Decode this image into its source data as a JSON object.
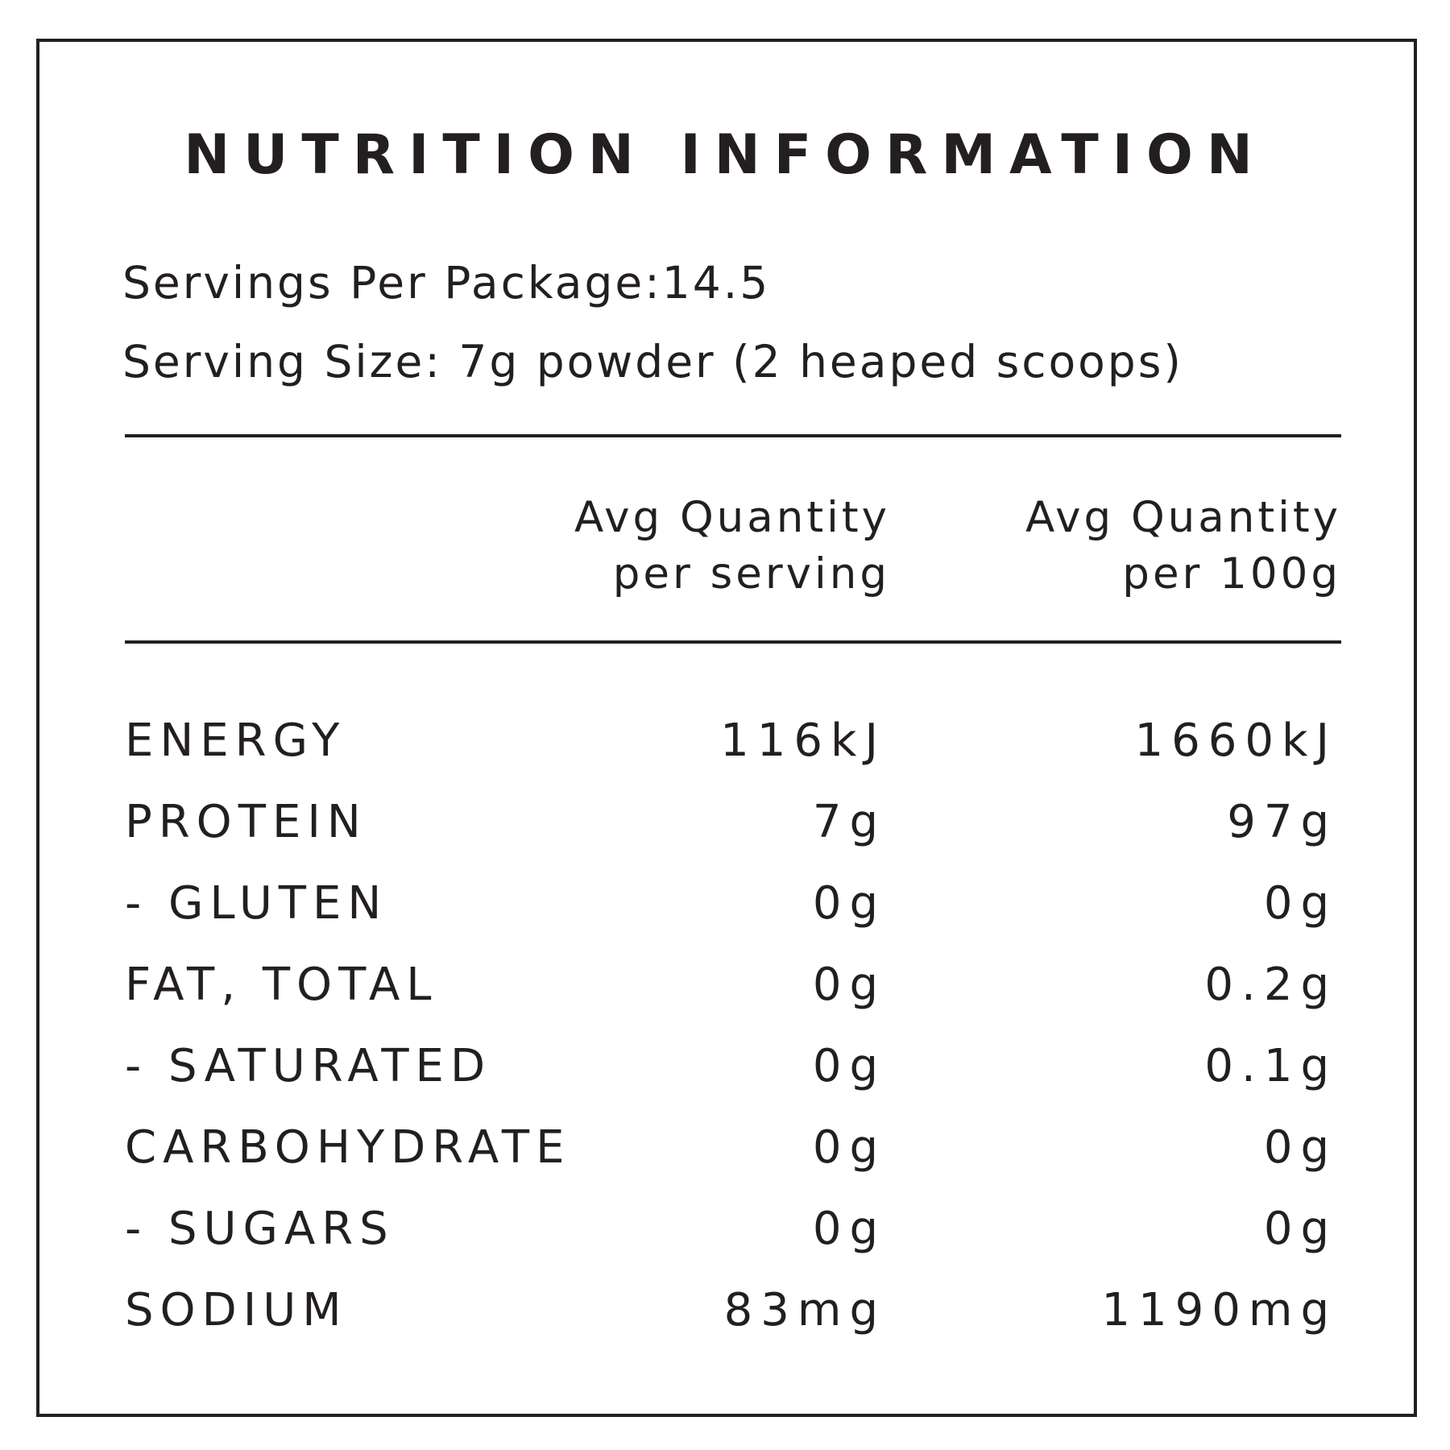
{
  "title": "NUTRITION INFORMATION",
  "servings_per_package": "Servings Per Package:14.5",
  "serving_size": "Serving Size: 7g powder (2 heaped scoops)",
  "columns": [
    {
      "line1": "Avg Quantity",
      "line2": "per serving"
    },
    {
      "line1": "Avg Quantity",
      "line2": "per 100g"
    }
  ],
  "rows": [
    {
      "label": "ENERGY",
      "per_serving": "116kJ",
      "per_100g": "1660kJ"
    },
    {
      "label": "PROTEIN",
      "per_serving": "7g",
      "per_100g": "97g"
    },
    {
      "label": "- GLUTEN",
      "per_serving": "0g",
      "per_100g": "0g"
    },
    {
      "label": "FAT, TOTAL",
      "per_serving": "0g",
      "per_100g": "0.2g"
    },
    {
      "label": "- SATURATED",
      "per_serving": "0g",
      "per_100g": "0.1g"
    },
    {
      "label": "CARBOHYDRATE",
      "per_serving": "0g",
      "per_100g": "0g"
    },
    {
      "label": "- SUGARS",
      "per_serving": "0g",
      "per_100g": "0g"
    },
    {
      "label": "SODIUM",
      "per_serving": "83mg",
      "per_100g": "1190mg"
    }
  ],
  "colors": {
    "ink": "#231f20",
    "background": "#ffffff"
  }
}
